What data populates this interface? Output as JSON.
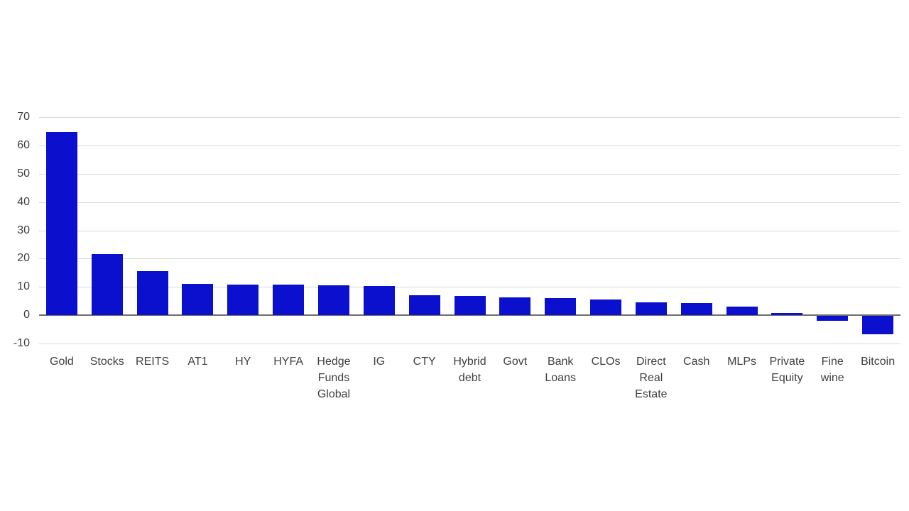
{
  "chart_data": {
    "type": "bar",
    "title": "",
    "xlabel": "",
    "ylabel": "",
    "categories": [
      "Gold",
      "Stocks",
      "REITS",
      "AT1",
      "HY",
      "HYFA",
      "Hedge Funds Global",
      "IG",
      "CTY",
      "Hybrid debt",
      "Govt",
      "Bank Loans",
      "CLOs",
      "Direct Real Estate",
      "Cash",
      "MLPs",
      "Private Equity",
      "Fine wine",
      "Bitcoin"
    ],
    "values": [
      64.8,
      21.7,
      15.6,
      11.1,
      10.9,
      10.8,
      10.5,
      10.4,
      7.1,
      6.7,
      6.4,
      6.1,
      5.5,
      4.6,
      4.2,
      3.1,
      0.9,
      -1.8,
      -6.4
    ],
    "ylim": [
      -10,
      70
    ],
    "yticks": [
      70,
      60,
      50,
      40,
      30,
      20,
      10,
      0,
      -10
    ],
    "grid": true,
    "legend": false,
    "colors": {
      "bar": "#0a10ce",
      "gridline": "#d9d9d9",
      "zero_axis": "#6e6e6e",
      "text": "#404040"
    }
  }
}
